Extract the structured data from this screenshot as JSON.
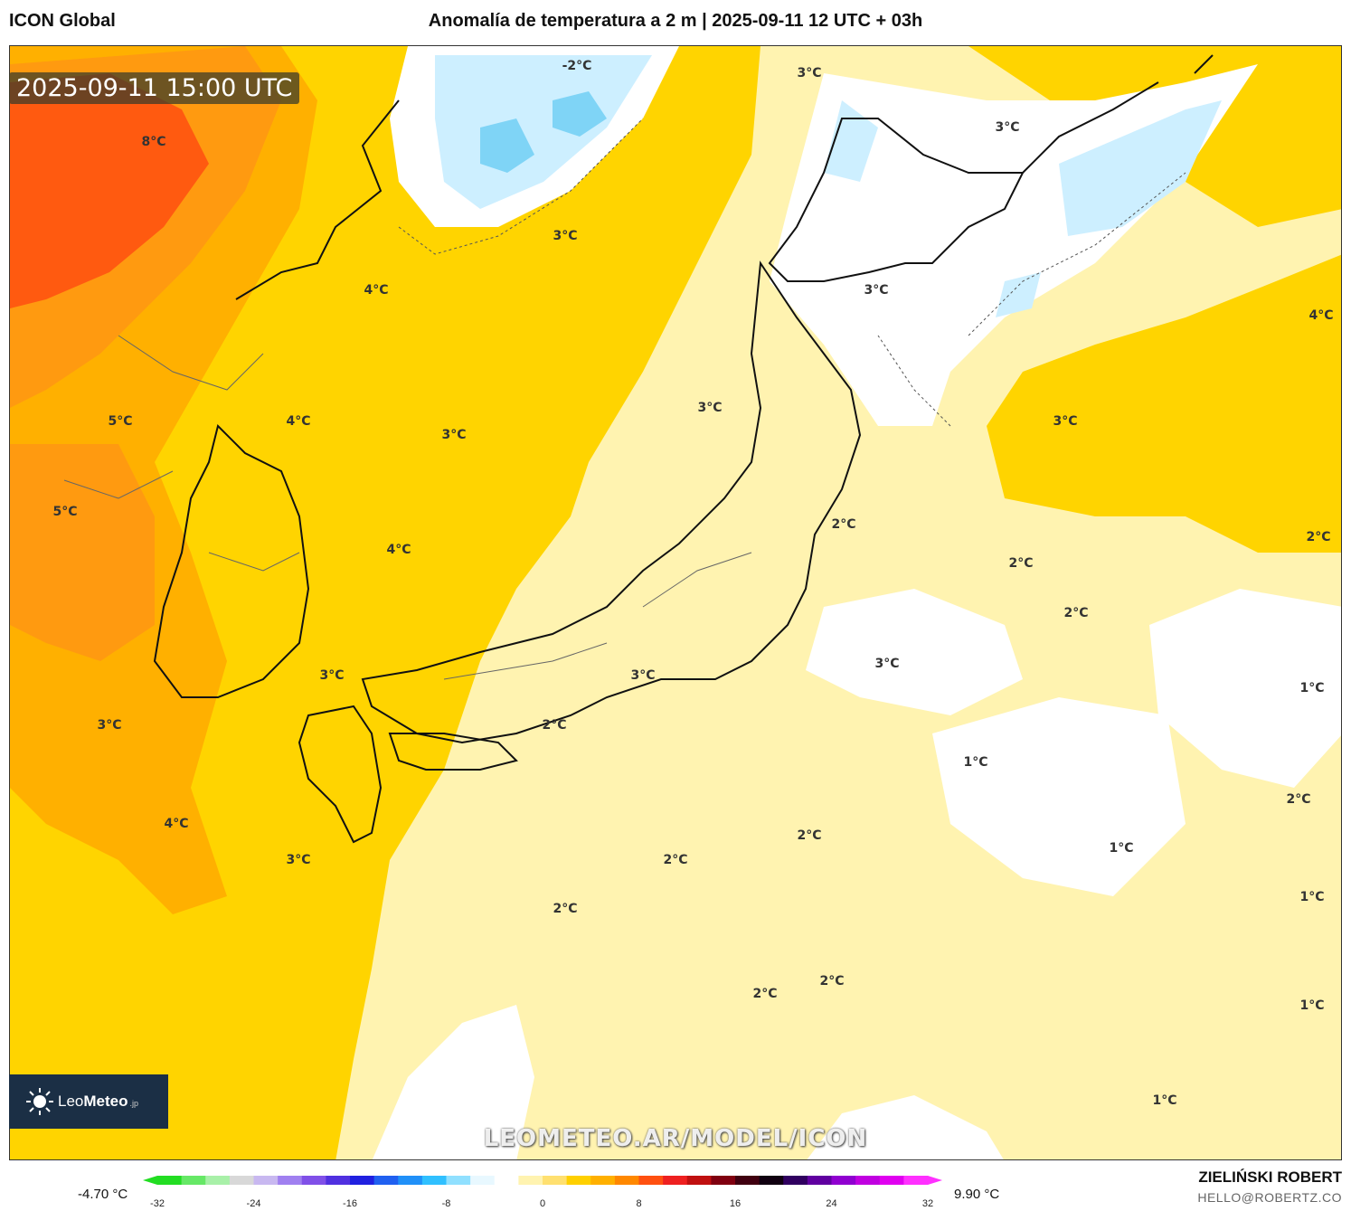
{
  "header": {
    "model": "ICON Global",
    "title": "Anomalía de temperatura a 2 m | 2025-09-11 12 UTC + 03h"
  },
  "timestamp_badge": "2025-09-11 15:00 UTC",
  "watermark": "LEOMETEO.AR/MODEL/ICON",
  "logo": {
    "name_plain": "Leo",
    "name_bold": "Meteo",
    "suffix": ".jp"
  },
  "credit": {
    "name": "ZIELIŃSKI ROBERT",
    "email": "HELLO@ROBERTZ.CO"
  },
  "colorbar": {
    "min_label": "-4.70 °C",
    "max_label": "9.90 °C",
    "ticks": [
      "-32",
      "-24",
      "-16",
      "-8",
      "0",
      "8",
      "16",
      "24",
      "32"
    ],
    "colors": [
      "#22dd22",
      "#66e866",
      "#a8f0a8",
      "#d8d8d8",
      "#c8b8f0",
      "#a080f0",
      "#8050e8",
      "#5030e0",
      "#2020e0",
      "#2060f0",
      "#2090f8",
      "#30c0ff",
      "#90e0ff",
      "#e8f8ff",
      "#ffffff",
      "#fff3b0",
      "#ffe070",
      "#ffd000",
      "#ffb000",
      "#ff8800",
      "#ff5010",
      "#ee2020",
      "#c01010",
      "#800010",
      "#400010",
      "#100010",
      "#300060",
      "#6000a0",
      "#9000d0",
      "#c000e0",
      "#e000f0",
      "#ff30ff"
    ]
  },
  "map_labels": [
    {
      "text": "-2°C"
    },
    {
      "text": "3°C"
    },
    {
      "text": "3°C"
    },
    {
      "text": "8°C"
    },
    {
      "text": "3°C"
    },
    {
      "text": "4°C"
    },
    {
      "text": "3°C"
    },
    {
      "text": "4°C"
    },
    {
      "text": "3°C"
    },
    {
      "text": "3°C"
    },
    {
      "text": "3°C"
    },
    {
      "text": "5°C"
    },
    {
      "text": "4°C"
    },
    {
      "text": "5°C"
    },
    {
      "text": "4°C"
    },
    {
      "text": "2°C"
    },
    {
      "text": "2°C"
    },
    {
      "text": "2°C"
    },
    {
      "text": "2°C"
    },
    {
      "text": "3°C"
    },
    {
      "text": "3°C"
    },
    {
      "text": "3°C"
    },
    {
      "text": "2°C"
    },
    {
      "text": "1°C"
    },
    {
      "text": "1°C"
    },
    {
      "text": "3°C"
    },
    {
      "text": "4°C"
    },
    {
      "text": "2°C"
    },
    {
      "text": "2°C"
    },
    {
      "text": "3°C"
    },
    {
      "text": "2°C"
    },
    {
      "text": "1°C"
    },
    {
      "text": "1°C"
    },
    {
      "text": "2°C"
    },
    {
      "text": "2°C"
    },
    {
      "text": "2°C"
    },
    {
      "text": "1°C"
    },
    {
      "text": "1°C"
    }
  ],
  "colors": {
    "pale_yellow": "#fff3b0",
    "yellow": "#ffd400",
    "deep_yellow": "#ffc400",
    "orange": "#ff9a10",
    "red_orange": "#ff5a10",
    "pale_blue": "#cdefff",
    "blue": "#7fd4f6"
  }
}
